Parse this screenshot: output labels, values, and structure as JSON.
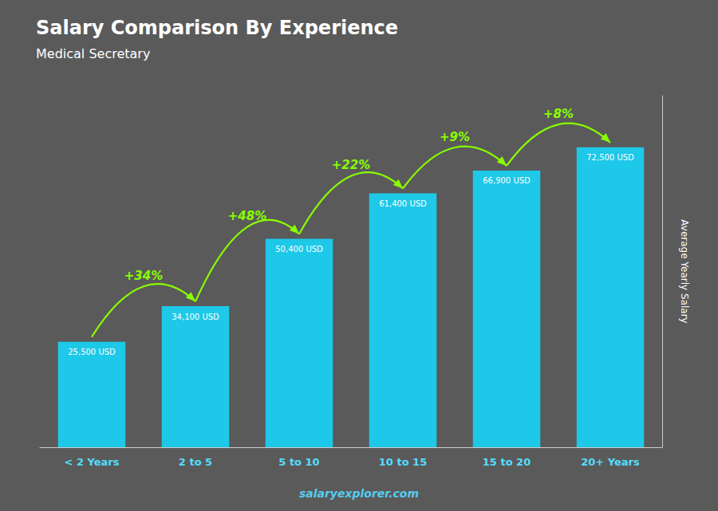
{
  "chart_data": {
    "type": "bar",
    "title": "Salary Comparison By Experience",
    "subtitle": "Medical Secretary",
    "ylabel": "Average Yearly Salary",
    "categories": [
      "< 2 Years",
      "2 to 5",
      "5 to 10",
      "10 to 15",
      "15 to 20",
      "20+ Years"
    ],
    "values": [
      25500,
      34100,
      50400,
      61400,
      66900,
      72500
    ],
    "value_labels": [
      "25,500 USD",
      "34,100 USD",
      "50,400 USD",
      "61,400 USD",
      "66,900 USD",
      "72,500 USD"
    ],
    "data_labels": true,
    "annotations": [
      "+34%",
      "+48%",
      "+22%",
      "+9%",
      "+8%"
    ],
    "footer": "salaryexplorer.com",
    "color": "#1EC8E8",
    "ylim": [
      0,
      85000
    ],
    "tick_labels": "x",
    "grid": false
  }
}
